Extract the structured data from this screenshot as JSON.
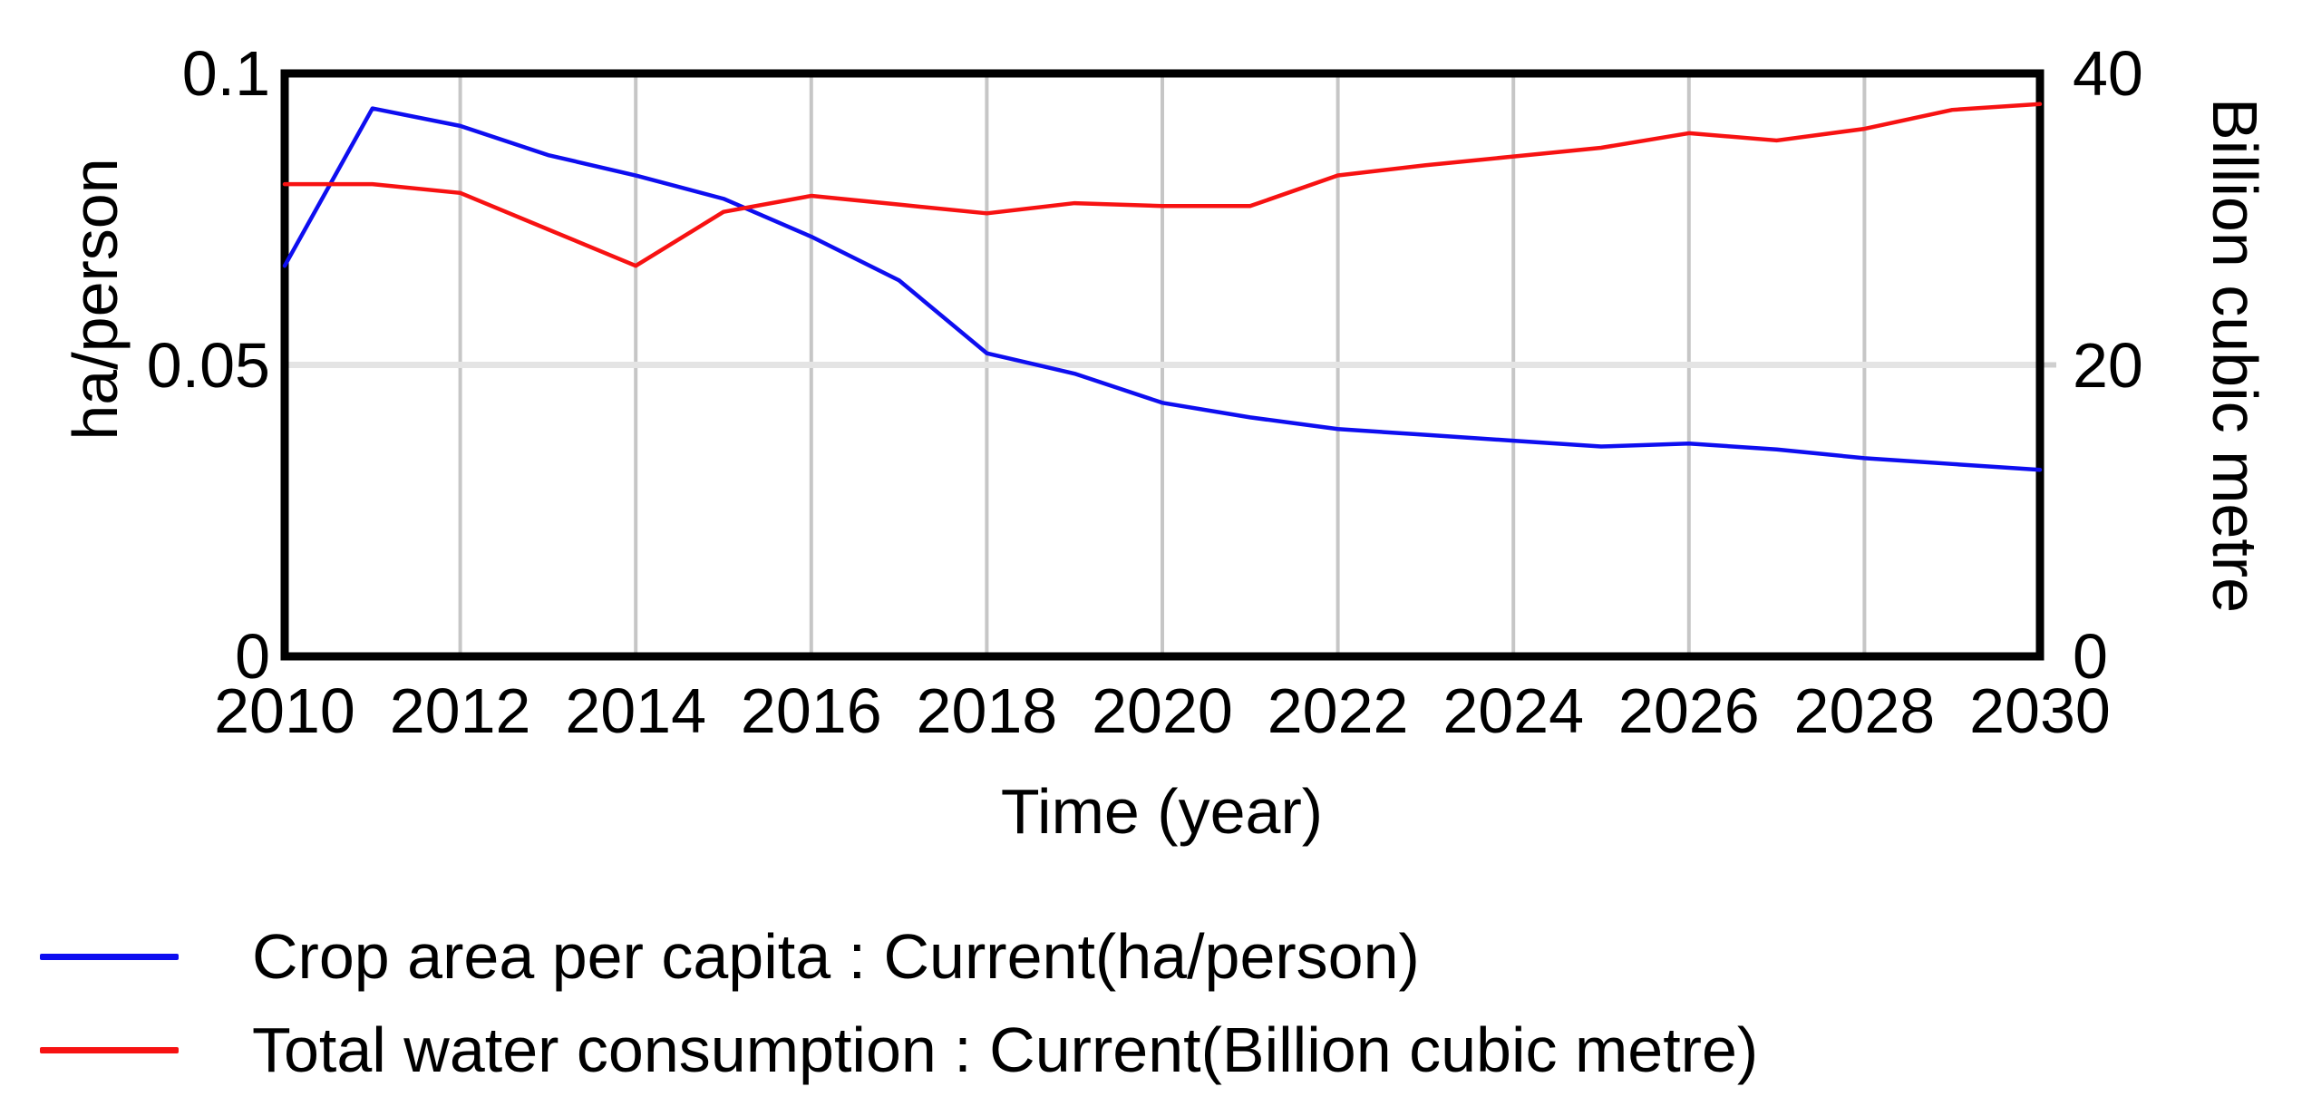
{
  "chart_data": {
    "type": "line",
    "title": "",
    "xlabel": "Time (year)",
    "ylabel_left": "ha/person",
    "ylabel_right": "Billion cubic metre",
    "x_range": [
      2010,
      2030
    ],
    "x": [
      2010,
      2011,
      2012,
      2013,
      2014,
      2015,
      2016,
      2017,
      2018,
      2019,
      2020,
      2021,
      2022,
      2023,
      2024,
      2025,
      2026,
      2027,
      2028,
      2029,
      2030
    ],
    "x_ticks": [
      "2010",
      "2012",
      "2014",
      "2016",
      "2018",
      "2020",
      "2022",
      "2024",
      "2026",
      "2028",
      "2030"
    ],
    "left_axis": {
      "range": [
        0,
        0.1
      ],
      "tick_values": [
        0,
        0.05,
        0.1
      ],
      "tick_labels": [
        "0",
        "0.05",
        "0.1"
      ]
    },
    "right_axis": {
      "range": [
        0,
        40
      ],
      "tick_values": [
        0,
        20,
        40
      ],
      "tick_labels": [
        "0",
        "20",
        "40"
      ]
    },
    "grid": {
      "vertical_years": [
        2012,
        2014,
        2016,
        2018,
        2020,
        2022,
        2024,
        2026,
        2028
      ],
      "horizontal_left_values": [
        0.05
      ],
      "vertical_color": "#c6c6c6",
      "horizontal_color": "#e4e4e4"
    },
    "frame_color": "#000000",
    "legend_position": "bottom-left",
    "series": [
      {
        "id": "crop-area-per-capita",
        "name": "Crop area per capita : Current(ha/person)",
        "axis": "left",
        "color": "#0e0ef0",
        "values": [
          0.067,
          0.094,
          0.091,
          0.086,
          0.0825,
          0.0785,
          0.072,
          0.0645,
          0.052,
          0.0485,
          0.0435,
          0.041,
          0.039,
          0.038,
          0.037,
          0.036,
          0.0365,
          0.0355,
          0.034,
          0.033,
          0.032
        ]
      },
      {
        "id": "total-water-consumption",
        "name": "Total water consumption : Current(Billion cubic metre)",
        "axis": "right",
        "color": "#f71212",
        "values": [
          32.4,
          32.4,
          31.8,
          29.3,
          26.8,
          30.5,
          31.6,
          31.0,
          30.4,
          31.1,
          30.9,
          30.9,
          33.0,
          33.7,
          34.3,
          34.9,
          35.9,
          35.4,
          36.2,
          37.5,
          37.9
        ]
      }
    ]
  }
}
